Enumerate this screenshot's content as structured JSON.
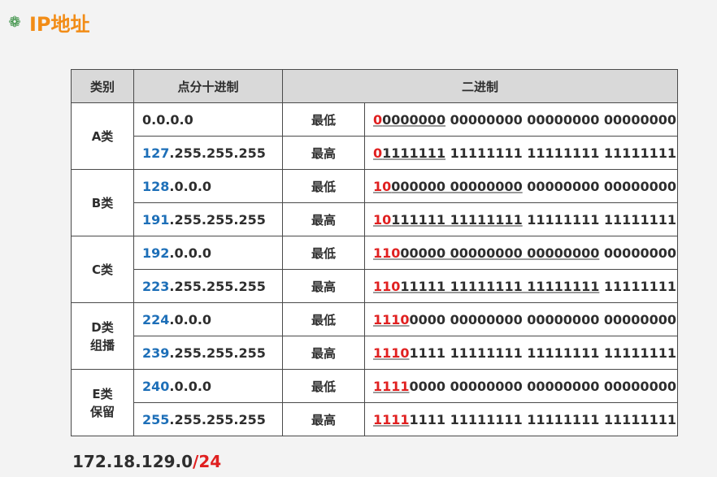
{
  "title": "IP地址",
  "icon": "gear-bullet-icon",
  "table": {
    "headers": [
      "类别",
      "点分十进制",
      "二进制"
    ],
    "labels": {
      "low": "最低",
      "high": "最高"
    },
    "rows": [
      {
        "class": [
          "A类"
        ],
        "low": {
          "dec_hl": "",
          "dec_rest": "0.0.0.0",
          "bin_red": "0",
          "bin_under": "0000000",
          "bin_rest": " 00000000 00000000 00000000"
        },
        "high": {
          "dec_hl": "127",
          "dec_rest": ".255.255.255",
          "bin_red": "0",
          "bin_under": "1111111",
          "bin_rest": " 11111111 11111111 11111111"
        }
      },
      {
        "class": [
          "B类"
        ],
        "low": {
          "dec_hl": "128",
          "dec_rest": ".0.0.0",
          "bin_red": "10",
          "bin_under": "000000 00000000",
          "bin_rest": " 00000000 00000000"
        },
        "high": {
          "dec_hl": "191",
          "dec_rest": ".255.255.255",
          "bin_red": "10",
          "bin_under": "111111 11111111",
          "bin_rest": " 11111111 11111111"
        }
      },
      {
        "class": [
          "C类"
        ],
        "low": {
          "dec_hl": "192",
          "dec_rest": ".0.0.0",
          "bin_red": "110",
          "bin_under": "00000 00000000 00000000",
          "bin_rest": " 00000000"
        },
        "high": {
          "dec_hl": "223",
          "dec_rest": ".255.255.255",
          "bin_red": "110",
          "bin_under": "11111 11111111 11111111",
          "bin_rest": " 11111111"
        }
      },
      {
        "class": [
          "D类",
          "组播"
        ],
        "low": {
          "dec_hl": "224",
          "dec_rest": ".0.0.0",
          "bin_red": "1110",
          "bin_under": "",
          "bin_rest": "0000 00000000 00000000 00000000"
        },
        "high": {
          "dec_hl": "239",
          "dec_rest": ".255.255.255",
          "bin_red": "1110",
          "bin_under": "",
          "bin_rest": "1111 11111111 11111111 11111111"
        }
      },
      {
        "class": [
          "E类",
          "保留"
        ],
        "low": {
          "dec_hl": "240",
          "dec_rest": ".0.0.0",
          "bin_red": "1111",
          "bin_under": "",
          "bin_rest": "0000 00000000 00000000 00000000"
        },
        "high": {
          "dec_hl": "255",
          "dec_rest": ".255.255.255",
          "bin_red": "1111",
          "bin_under": "",
          "bin_rest": "1111 11111111 11111111 11111111"
        }
      }
    ]
  },
  "example": {
    "address": "172.18.129.0",
    "prefix": "/24"
  },
  "colors": {
    "title": "#f28c16",
    "highlight_blue": "#1d6fb8",
    "highlight_red": "#e02020",
    "header_bg": "#d9d9d9"
  }
}
